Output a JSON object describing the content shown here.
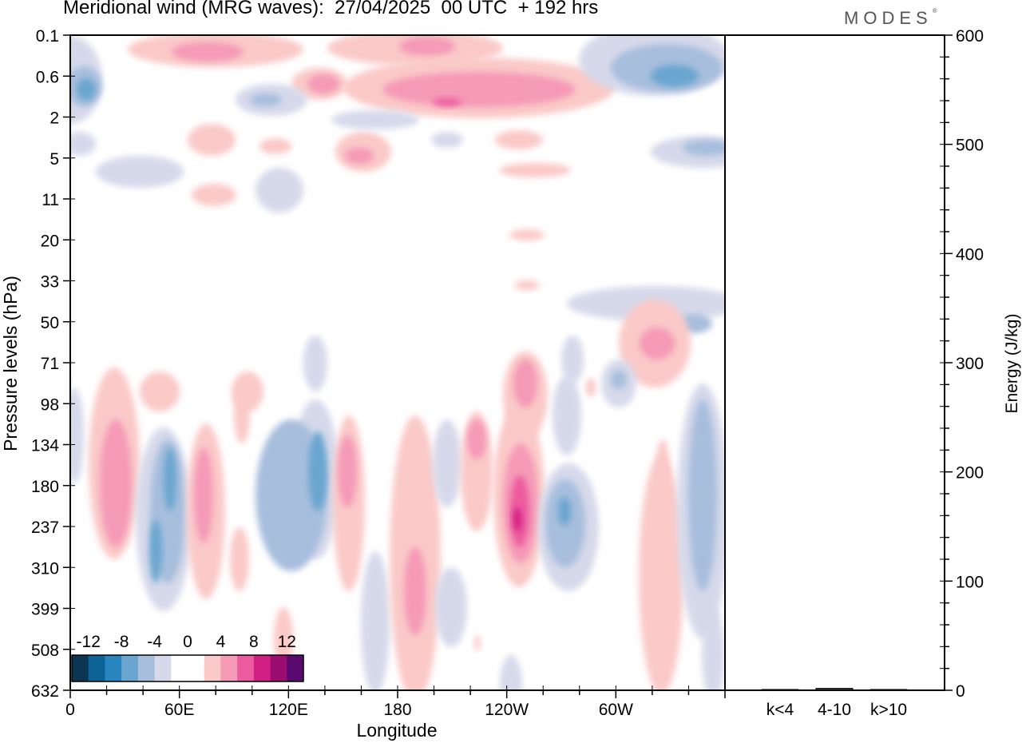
{
  "header": {
    "title": "Meridional wind (MRG waves):  27/04/2025  00 UTC  + 192 hrs",
    "brand": "MODES"
  },
  "colors": {
    "scale": [
      "#0b3550",
      "#0d6296",
      "#2985c0",
      "#6aa6cf",
      "#a7bedd",
      "#d6d9ea",
      "#ffffff",
      "#ffffff",
      "#fac9c8",
      "#f59ab7",
      "#ec5b9e",
      "#d21f84",
      "#9c0d72",
      "#5a0a6e"
    ],
    "neg_light": "#d6d9ea",
    "neg_mid": "#a7bedd",
    "neg_strong": "#6aa6cf",
    "neg_core": "#2985c0",
    "pos_light": "#fac9c8",
    "pos_mid": "#f59ab7",
    "pos_strong": "#ec5b9e",
    "pos_core": "#d21f84"
  },
  "chart_data": [
    {
      "type": "heatmap",
      "title": "Meridional wind (MRG waves):  27/04/2025  00 UTC  + 192 hrs",
      "xlabel": "Longitude",
      "ylabel": "Pressure levels (hPa)",
      "x_ticks": [
        "0",
        "60E",
        "120E",
        "180",
        "120W",
        "60W"
      ],
      "y_ticks": [
        "0.1",
        "0.6",
        "2",
        "5",
        "11",
        "20",
        "33",
        "50",
        "71",
        "98",
        "134",
        "180",
        "237",
        "310",
        "399",
        "508",
        "632"
      ],
      "colorbar": {
        "labels": [
          "-12",
          "-8",
          "-4",
          "0",
          "4",
          "8",
          "12"
        ],
        "levels": [
          -14,
          -12,
          -10,
          -8,
          -6,
          -4,
          -2,
          0,
          2,
          4,
          6,
          8,
          10,
          12,
          14
        ]
      },
      "series": [
        {
          "lon": 25,
          "level": "180",
          "value": 7
        },
        {
          "lon": 56,
          "level": "199",
          "value": -7
        },
        {
          "lon": 47,
          "level": "237",
          "value": -7
        },
        {
          "lon": 70,
          "level": "180",
          "value": 5
        },
        {
          "lon": 130,
          "level": "180",
          "value": -9
        },
        {
          "lon": 152,
          "level": "180",
          "value": 5
        },
        {
          "lon": 190,
          "level": "310",
          "value": 6
        },
        {
          "lon": 225,
          "level": "134",
          "value": 5
        },
        {
          "lon": 250,
          "level": "237",
          "value": 11
        },
        {
          "lon": 265,
          "level": "237",
          "value": -7
        },
        {
          "lon": 323,
          "level": "71",
          "value": 5
        },
        {
          "lon": 353,
          "level": "237",
          "value": -5
        },
        {
          "lon": 330,
          "level": "237",
          "value": 3
        },
        {
          "lon": 235,
          "level": "1.4",
          "value": 8
        },
        {
          "lon": 320,
          "level": "0.6",
          "value": -7
        },
        {
          "lon": 80,
          "level": "0.3",
          "value": 5
        },
        {
          "lon": 7,
          "level": "0.9",
          "value": -5
        }
      ]
    },
    {
      "type": "bar",
      "ylabel": "Energy (J/kg)",
      "categories": [
        "k<4",
        "4-10",
        "k>10"
      ],
      "values": [
        0,
        1,
        0
      ],
      "ylim": [
        0,
        600
      ],
      "y_ticks": [
        "0",
        "100",
        "200",
        "300",
        "400",
        "500",
        "600"
      ]
    }
  ]
}
